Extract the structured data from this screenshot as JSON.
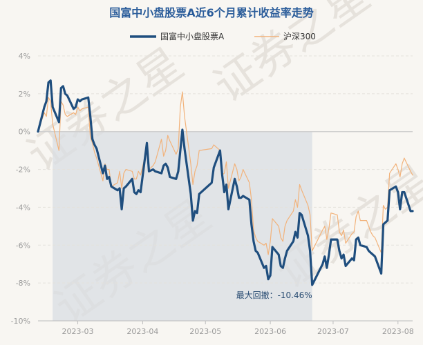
{
  "chart_data": {
    "type": "line",
    "title": "国富中小盘股票A近6个月累计收益率走势",
    "series": [
      {
        "name": "国富中小盘股票A",
        "color": "#1f4e7e",
        "x": [
          "2023-02-10",
          "2023-02-13",
          "2023-02-14",
          "2023-02-15",
          "2023-02-16",
          "2023-02-17",
          "2023-02-20",
          "2023-02-21",
          "2023-02-22",
          "2023-02-23",
          "2023-02-24",
          "2023-02-27",
          "2023-02-28",
          "2023-03-01",
          "2023-03-02",
          "2023-03-03",
          "2023-03-06",
          "2023-03-07",
          "2023-03-08",
          "2023-03-09",
          "2023-03-10",
          "2023-03-13",
          "2023-03-14",
          "2023-03-15",
          "2023-03-16",
          "2023-03-17",
          "2023-03-20",
          "2023-03-21",
          "2023-03-22",
          "2023-03-23",
          "2023-03-24",
          "2023-03-27",
          "2023-03-28",
          "2023-03-29",
          "2023-03-30",
          "2023-03-31",
          "2023-04-03",
          "2023-04-04",
          "2023-04-06",
          "2023-04-07",
          "2023-04-10",
          "2023-04-11",
          "2023-04-12",
          "2023-04-13",
          "2023-04-14",
          "2023-04-17",
          "2023-04-18",
          "2023-04-19",
          "2023-04-20",
          "2023-04-21",
          "2023-04-24",
          "2023-04-25",
          "2023-04-26",
          "2023-04-27",
          "2023-04-28",
          "2023-05-04",
          "2023-05-05",
          "2023-05-08",
          "2023-05-09",
          "2023-05-10",
          "2023-05-11",
          "2023-05-12",
          "2023-05-15",
          "2023-05-16",
          "2023-05-17",
          "2023-05-18",
          "2023-05-19",
          "2023-05-22",
          "2023-05-23",
          "2023-05-24",
          "2023-05-25",
          "2023-05-26",
          "2023-05-29",
          "2023-05-30",
          "2023-05-31",
          "2023-06-01",
          "2023-06-02",
          "2023-06-05",
          "2023-06-06",
          "2023-06-07",
          "2023-06-08",
          "2023-06-09",
          "2023-06-12",
          "2023-06-13",
          "2023-06-14",
          "2023-06-15",
          "2023-06-16",
          "2023-06-19",
          "2023-06-20",
          "2023-06-21",
          "2023-06-26",
          "2023-06-27",
          "2023-06-28",
          "2023-06-29",
          "2023-06-30",
          "2023-07-03",
          "2023-07-04",
          "2023-07-05",
          "2023-07-06",
          "2023-07-07",
          "2023-07-10",
          "2023-07-11",
          "2023-07-12",
          "2023-07-13",
          "2023-07-14",
          "2023-07-17",
          "2023-07-18",
          "2023-07-19",
          "2023-07-20",
          "2023-07-21",
          "2023-07-24",
          "2023-07-25",
          "2023-07-26",
          "2023-07-27",
          "2023-07-28",
          "2023-07-31",
          "2023-08-01",
          "2023-08-02",
          "2023-08-03",
          "2023-08-04",
          "2023-08-07",
          "2023-08-08"
        ],
        "y": [
          0.0,
          1.3,
          1.6,
          2.6,
          2.7,
          1.3,
          0.5,
          2.3,
          2.4,
          2.0,
          1.9,
          1.2,
          1.3,
          1.7,
          1.6,
          1.7,
          1.8,
          0.8,
          -0.4,
          -0.7,
          -0.9,
          -2.2,
          -1.8,
          -2.5,
          -2.4,
          -2.9,
          -3.1,
          -3.0,
          -4.1,
          -3.0,
          -2.9,
          -2.5,
          -3.2,
          -3.3,
          -3.1,
          -3.2,
          -0.6,
          -2.1,
          -2.0,
          -2.1,
          -2.2,
          -1.8,
          -1.7,
          -1.9,
          -2.4,
          -2.5,
          -2.1,
          -1.0,
          0.1,
          -0.9,
          -3.3,
          -4.7,
          -4.2,
          -4.3,
          -3.3,
          -2.7,
          -1.9,
          -1.0,
          -2.3,
          -3.2,
          -2.8,
          -4.1,
          -2.5,
          -2.9,
          -3.5,
          -3.5,
          -3.4,
          -3.6,
          -4.9,
          -5.8,
          -6.3,
          -6.4,
          -7.2,
          -7.1,
          -7.8,
          -7.6,
          -6.1,
          -6.5,
          -7.1,
          -7.2,
          -6.7,
          -6.3,
          -5.8,
          -5.3,
          -5.6,
          -4.3,
          -4.4,
          -5.5,
          -6.3,
          -8.1,
          -7.0,
          -6.6,
          -7.2,
          -6.5,
          -5.7,
          -5.7,
          -6.3,
          -6.7,
          -6.5,
          -7.1,
          -6.7,
          -6.8,
          -5.7,
          -5.6,
          -6.0,
          -6.1,
          -6.3,
          -6.4,
          -6.5,
          -6.6,
          -7.5,
          -4.9,
          -4.8,
          -4.7,
          -3.1,
          -2.9,
          -3.2,
          -4.1,
          -3.2,
          -3.2,
          -4.2,
          -4.2
        ]
      },
      {
        "name": "沪深300",
        "color": "#f2b27a",
        "x": [
          "2023-02-10",
          "2023-02-13",
          "2023-02-14",
          "2023-02-15",
          "2023-02-16",
          "2023-02-17",
          "2023-02-20",
          "2023-02-21",
          "2023-02-22",
          "2023-02-23",
          "2023-02-24",
          "2023-02-27",
          "2023-02-28",
          "2023-03-01",
          "2023-03-02",
          "2023-03-03",
          "2023-03-06",
          "2023-03-07",
          "2023-03-08",
          "2023-03-09",
          "2023-03-10",
          "2023-03-13",
          "2023-03-14",
          "2023-03-15",
          "2023-03-16",
          "2023-03-17",
          "2023-03-20",
          "2023-03-21",
          "2023-03-22",
          "2023-03-23",
          "2023-03-24",
          "2023-03-27",
          "2023-03-28",
          "2023-03-29",
          "2023-03-30",
          "2023-03-31",
          "2023-04-03",
          "2023-04-04",
          "2023-04-06",
          "2023-04-07",
          "2023-04-10",
          "2023-04-11",
          "2023-04-12",
          "2023-04-13",
          "2023-04-14",
          "2023-04-17",
          "2023-04-18",
          "2023-04-19",
          "2023-04-20",
          "2023-04-21",
          "2023-04-24",
          "2023-04-25",
          "2023-04-26",
          "2023-04-27",
          "2023-04-28",
          "2023-05-04",
          "2023-05-05",
          "2023-05-08",
          "2023-05-09",
          "2023-05-10",
          "2023-05-11",
          "2023-05-12",
          "2023-05-15",
          "2023-05-16",
          "2023-05-17",
          "2023-05-18",
          "2023-05-19",
          "2023-05-22",
          "2023-05-23",
          "2023-05-24",
          "2023-05-25",
          "2023-05-26",
          "2023-05-29",
          "2023-05-30",
          "2023-05-31",
          "2023-06-01",
          "2023-06-02",
          "2023-06-05",
          "2023-06-06",
          "2023-06-07",
          "2023-06-08",
          "2023-06-09",
          "2023-06-12",
          "2023-06-13",
          "2023-06-14",
          "2023-06-15",
          "2023-06-16",
          "2023-06-19",
          "2023-06-20",
          "2023-06-21",
          "2023-06-26",
          "2023-06-27",
          "2023-06-28",
          "2023-06-29",
          "2023-06-30",
          "2023-07-03",
          "2023-07-04",
          "2023-07-05",
          "2023-07-06",
          "2023-07-07",
          "2023-07-10",
          "2023-07-11",
          "2023-07-12",
          "2023-07-13",
          "2023-07-14",
          "2023-07-17",
          "2023-07-18",
          "2023-07-19",
          "2023-07-20",
          "2023-07-21",
          "2023-07-24",
          "2023-07-25",
          "2023-07-26",
          "2023-07-27",
          "2023-07-28",
          "2023-07-31",
          "2023-08-01",
          "2023-08-02",
          "2023-08-03",
          "2023-08-04",
          "2023-08-07",
          "2023-08-08"
        ],
        "y": [
          0.0,
          1.0,
          0.8,
          1.8,
          1.6,
          0.4,
          -1.0,
          1.6,
          1.4,
          0.9,
          0.8,
          1.0,
          0.9,
          1.3,
          1.1,
          1.2,
          1.3,
          -0.3,
          -0.6,
          -1.1,
          -1.4,
          -2.6,
          -1.7,
          -2.0,
          -2.0,
          -2.9,
          -2.7,
          -2.1,
          -3.0,
          -2.2,
          -2.0,
          -2.1,
          -2.5,
          -2.5,
          -2.1,
          -2.3,
          -0.9,
          -2.0,
          -1.8,
          -1.6,
          -0.4,
          -1.3,
          -1.0,
          -0.2,
          -0.5,
          -1.2,
          -0.9,
          1.3,
          2.1,
          0.8,
          -1.7,
          -2.8,
          -2.1,
          -1.8,
          -1.0,
          -0.9,
          -0.7,
          -1.0,
          -2.3,
          -2.2,
          -1.6,
          -3.0,
          -1.7,
          -2.0,
          -2.6,
          -2.4,
          -2.0,
          -2.7,
          -3.6,
          -5.2,
          -5.6,
          -5.8,
          -6.0,
          -5.9,
          -6.5,
          -5.8,
          -4.6,
          -5.0,
          -5.6,
          -5.8,
          -5.0,
          -4.7,
          -4.2,
          -3.6,
          -4.0,
          -2.8,
          -3.1,
          -3.9,
          -4.4,
          -6.3,
          -5.2,
          -5.0,
          -5.7,
          -5.1,
          -4.3,
          -4.4,
          -5.3,
          -5.5,
          -5.2,
          -5.9,
          -5.4,
          -5.3,
          -4.5,
          -4.2,
          -4.7,
          -4.7,
          -5.0,
          -5.3,
          -5.5,
          -5.6,
          -6.4,
          -3.9,
          -4.1,
          -4.0,
          -2.2,
          -1.7,
          -2.0,
          -2.4,
          -1.7,
          -1.4,
          -2.1,
          -2.3
        ]
      }
    ],
    "xticks": [
      "2023-03",
      "2023-04",
      "2023-05",
      "2023-06",
      "2023-07",
      "2023-08"
    ],
    "xtick_dates": [
      "2023-03-01",
      "2023-04-01",
      "2023-05-01",
      "2023-06-01",
      "2023-07-01",
      "2023-08-01"
    ],
    "yticks": [
      4,
      2,
      0,
      -2,
      -4,
      -6,
      -8,
      -10
    ],
    "ytick_labels": [
      "4%",
      "2%",
      "0%",
      "-2%",
      "-4%",
      "-6%",
      "-8%",
      "-10%"
    ],
    "ylim": [
      -10,
      4
    ],
    "xlim": [
      "2023-02-10",
      "2023-08-08"
    ],
    "grid": "horizontal",
    "legend_position": "top-center",
    "annotation": {
      "text": "最大回撤：-10.46%",
      "period_start": "2023-02-17",
      "period_end": "2023-06-21",
      "shade_color": "#d9dee3"
    },
    "watermark": "证券之星"
  }
}
